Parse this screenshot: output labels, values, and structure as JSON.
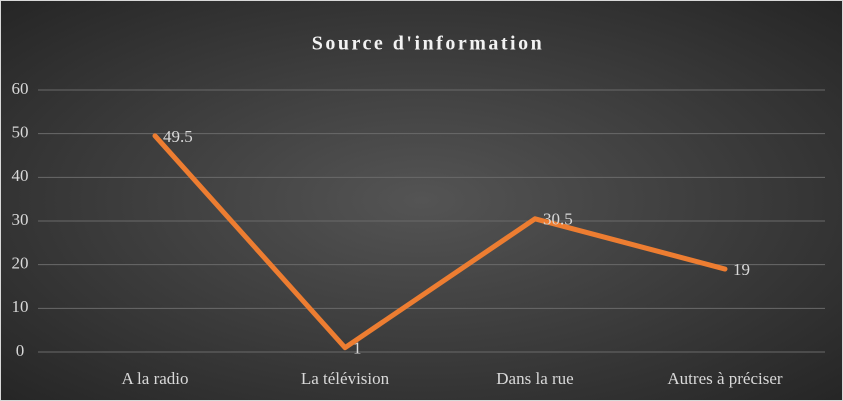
{
  "chart_data": {
    "type": "line",
    "title": "Source d'information",
    "categories": [
      "A la radio",
      "La télévision",
      "Dans la rue",
      "Autres à préciser"
    ],
    "values": [
      49.5,
      1,
      30.5,
      19
    ],
    "color": "#ed7d31",
    "ylim": [
      0,
      60
    ],
    "yticks": [
      0,
      10,
      20,
      30,
      40,
      50,
      60
    ],
    "grid": true,
    "data_labels": true
  }
}
